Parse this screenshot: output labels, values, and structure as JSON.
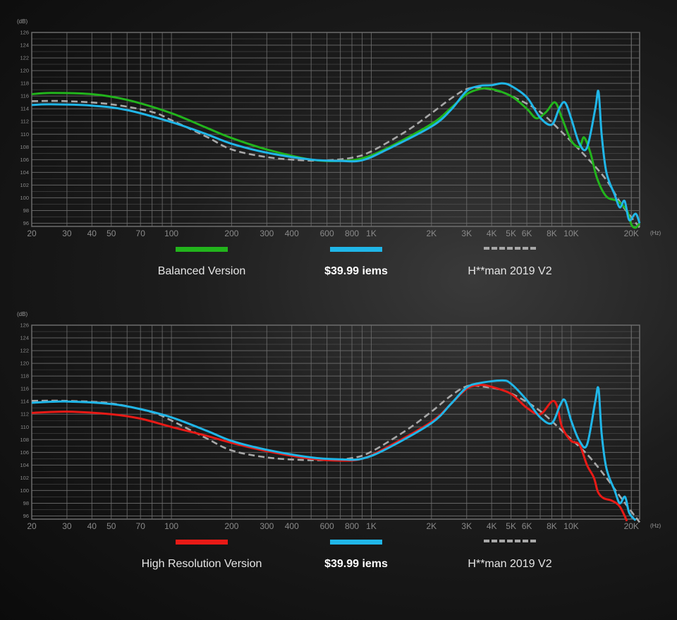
{
  "colors": {
    "grid": "#6c6c6c",
    "green": "#22b41c",
    "blue": "#20b6e8",
    "red": "#e81a16",
    "gray": "#a8a8a8",
    "axis_text": "#8a8a8a",
    "unit_text": "#9a9a9a"
  },
  "chart_data": [
    {
      "type": "line",
      "ylabel": "(dB)",
      "xunit": "(Hz)",
      "xscale": "log",
      "xlim": [
        20,
        22000
      ],
      "ylim": [
        95.5,
        126
      ],
      "yticks": [
        126,
        124,
        122,
        120,
        118,
        116,
        114,
        112,
        110,
        108,
        106,
        104,
        102,
        100,
        98,
        96
      ],
      "xticks": [
        {
          "v": 20,
          "label": "20"
        },
        {
          "v": 30,
          "label": "30"
        },
        {
          "v": 40,
          "label": "40"
        },
        {
          "v": 50,
          "label": "50"
        },
        {
          "v": 70,
          "label": "70"
        },
        {
          "v": 100,
          "label": "100"
        },
        {
          "v": 200,
          "label": "200"
        },
        {
          "v": 300,
          "label": "300"
        },
        {
          "v": 400,
          "label": "400"
        },
        {
          "v": 600,
          "label": "600"
        },
        {
          "v": 800,
          "label": "800"
        },
        {
          "v": 1000,
          "label": "1K"
        },
        {
          "v": 2000,
          "label": "2K"
        },
        {
          "v": 3000,
          "label": "3K"
        },
        {
          "v": 4000,
          "label": "4K"
        },
        {
          "v": 5000,
          "label": "5K"
        },
        {
          "v": 6000,
          "label": "6K"
        },
        {
          "v": 8000,
          "label": "8K"
        },
        {
          "v": 10000,
          "label": "10K"
        },
        {
          "v": 20000,
          "label": "20K"
        }
      ],
      "series": [
        {
          "name": "H**man 2019 V2",
          "color": "#a8a8a8",
          "dashed": true,
          "points": [
            [
              20,
              115.2
            ],
            [
              30,
              115.2
            ],
            [
              50,
              114.7
            ],
            [
              80,
              113.5
            ],
            [
              100,
              112.2
            ],
            [
              150,
              109.6
            ],
            [
              200,
              107.6
            ],
            [
              300,
              106.4
            ],
            [
              450,
              105.9
            ],
            [
              600,
              105.9
            ],
            [
              800,
              106.3
            ],
            [
              1000,
              107.3
            ],
            [
              1500,
              110.5
            ],
            [
              2000,
              113.3
            ],
            [
              2500,
              115.6
            ],
            [
              3000,
              117.1
            ],
            [
              3500,
              117.3
            ],
            [
              4500,
              116.6
            ],
            [
              5500,
              115.4
            ],
            [
              7000,
              113.5
            ],
            [
              9000,
              110.3
            ],
            [
              12000,
              106.3
            ],
            [
              15000,
              102.8
            ],
            [
              18000,
              98.8
            ],
            [
              22000,
              95.3
            ]
          ]
        },
        {
          "name": "Balanced Version",
          "color": "#22b41c",
          "dashed": false,
          "points": [
            [
              20,
              116.3
            ],
            [
              25,
              116.5
            ],
            [
              40,
              116.3
            ],
            [
              60,
              115.4
            ],
            [
              100,
              113.3
            ],
            [
              150,
              111.0
            ],
            [
              200,
              109.4
            ],
            [
              300,
              107.6
            ],
            [
              500,
              106.0
            ],
            [
              700,
              105.8
            ],
            [
              900,
              106.2
            ],
            [
              1200,
              107.8
            ],
            [
              2000,
              111.6
            ],
            [
              2500,
              114.1
            ],
            [
              3000,
              116.3
            ],
            [
              3500,
              117.1
            ],
            [
              4000,
              117.1
            ],
            [
              5000,
              116.0
            ],
            [
              6000,
              114.0
            ],
            [
              6700,
              112.5
            ],
            [
              7500,
              113.5
            ],
            [
              8300,
              115.0
            ],
            [
              9000,
              112.5
            ],
            [
              10000,
              109.0
            ],
            [
              11000,
              108.0
            ],
            [
              11600,
              109.5
            ],
            [
              12500,
              107.0
            ],
            [
              13500,
              103.0
            ],
            [
              15000,
              100.2
            ],
            [
              17000,
              99.5
            ],
            [
              19000,
              98.0
            ],
            [
              20000,
              95.8
            ],
            [
              21000,
              95.3
            ],
            [
              22000,
              96.0
            ]
          ]
        },
        {
          "name": "$39.99 iems",
          "color": "#20b6e8",
          "dashed": false,
          "points": [
            [
              20,
              114.6
            ],
            [
              25,
              114.7
            ],
            [
              40,
              114.5
            ],
            [
              60,
              113.8
            ],
            [
              100,
              111.9
            ],
            [
              150,
              110.0
            ],
            [
              200,
              108.5
            ],
            [
              300,
              107.1
            ],
            [
              500,
              106.0
            ],
            [
              700,
              105.8
            ],
            [
              900,
              105.9
            ],
            [
              1200,
              107.6
            ],
            [
              2000,
              111.2
            ],
            [
              2500,
              113.8
            ],
            [
              3000,
              116.8
            ],
            [
              3500,
              117.6
            ],
            [
              4000,
              117.7
            ],
            [
              4500,
              118.0
            ],
            [
              5000,
              117.6
            ],
            [
              6000,
              115.8
            ],
            [
              7000,
              112.6
            ],
            [
              8000,
              111.5
            ],
            [
              8700,
              114.0
            ],
            [
              9300,
              115.0
            ],
            [
              10000,
              112.5
            ],
            [
              11000,
              108.5
            ],
            [
              12000,
              107.9
            ],
            [
              13200,
              114.0
            ],
            [
              13700,
              116.7
            ],
            [
              14200,
              110.0
            ],
            [
              15000,
              104.0
            ],
            [
              16500,
              100.5
            ],
            [
              17500,
              98.5
            ],
            [
              18500,
              99.5
            ],
            [
              19500,
              96.5
            ],
            [
              21000,
              97.5
            ],
            [
              22000,
              96.0
            ]
          ]
        }
      ],
      "legend": [
        {
          "label": "Balanced Version",
          "color": "#22b41c",
          "dashed": false,
          "bold": false
        },
        {
          "label": "$39.99 iems",
          "color": "#20b6e8",
          "dashed": false,
          "bold": true
        },
        {
          "label": "H**man 2019 V2",
          "color": "#a8a8a8",
          "dashed": true,
          "bold": false
        }
      ]
    },
    {
      "type": "line",
      "ylabel": "(dB)",
      "xunit": "(Hz)",
      "xscale": "log",
      "xlim": [
        20,
        22000
      ],
      "ylim": [
        95.5,
        126
      ],
      "yticks": [
        126,
        124,
        122,
        120,
        118,
        116,
        114,
        112,
        110,
        108,
        106,
        104,
        102,
        100,
        98,
        96
      ],
      "xticks": [
        {
          "v": 20,
          "label": "20"
        },
        {
          "v": 30,
          "label": "30"
        },
        {
          "v": 40,
          "label": "40"
        },
        {
          "v": 50,
          "label": "50"
        },
        {
          "v": 70,
          "label": "70"
        },
        {
          "v": 100,
          "label": "100"
        },
        {
          "v": 200,
          "label": "200"
        },
        {
          "v": 300,
          "label": "300"
        },
        {
          "v": 400,
          "label": "400"
        },
        {
          "v": 600,
          "label": "600"
        },
        {
          "v": 800,
          "label": "800"
        },
        {
          "v": 1000,
          "label": "1K"
        },
        {
          "v": 2000,
          "label": "2K"
        },
        {
          "v": 3000,
          "label": "3K"
        },
        {
          "v": 4000,
          "label": "4K"
        },
        {
          "v": 5000,
          "label": "5K"
        },
        {
          "v": 6000,
          "label": "6K"
        },
        {
          "v": 8000,
          "label": "8K"
        },
        {
          "v": 10000,
          "label": "10K"
        },
        {
          "v": 20000,
          "label": "20K"
        }
      ],
      "series": [
        {
          "name": "H**man 2019 V2",
          "color": "#a8a8a8",
          "dashed": true,
          "points": [
            [
              20,
              114.1
            ],
            [
              30,
              114.1
            ],
            [
              50,
              113.7
            ],
            [
              80,
              112.3
            ],
            [
              100,
              111.0
            ],
            [
              150,
              108.2
            ],
            [
              200,
              106.3
            ],
            [
              300,
              105.2
            ],
            [
              450,
              104.8
            ],
            [
              600,
              104.8
            ],
            [
              800,
              105.1
            ],
            [
              1000,
              106.1
            ],
            [
              1500,
              109.5
            ],
            [
              2000,
              112.4
            ],
            [
              2500,
              114.9
            ],
            [
              3000,
              116.4
            ],
            [
              3500,
              116.4
            ],
            [
              4500,
              115.8
            ],
            [
              5500,
              114.6
            ],
            [
              7000,
              112.5
            ],
            [
              9000,
              109.4
            ],
            [
              12000,
              105.7
            ],
            [
              15000,
              102.0
            ],
            [
              18000,
              98.6
            ],
            [
              22000,
              95.0
            ]
          ]
        },
        {
          "name": "High Resolution Version",
          "color": "#e81a16",
          "dashed": false,
          "points": [
            [
              20,
              112.2
            ],
            [
              30,
              112.4
            ],
            [
              50,
              112.0
            ],
            [
              70,
              111.3
            ],
            [
              100,
              110.0
            ],
            [
              150,
              108.6
            ],
            [
              200,
              107.5
            ],
            [
              300,
              106.2
            ],
            [
              500,
              105.0
            ],
            [
              700,
              104.7
            ],
            [
              900,
              105.0
            ],
            [
              1200,
              106.8
            ],
            [
              2000,
              110.8
            ],
            [
              2500,
              113.6
            ],
            [
              3000,
              116.0
            ],
            [
              3500,
              116.6
            ],
            [
              4000,
              116.3
            ],
            [
              5000,
              115.2
            ],
            [
              6000,
              113.0
            ],
            [
              7000,
              112.0
            ],
            [
              8000,
              114.0
            ],
            [
              8500,
              113.3
            ],
            [
              9000,
              110.0
            ],
            [
              10000,
              107.8
            ],
            [
              11000,
              107.2
            ],
            [
              12000,
              104.0
            ],
            [
              13000,
              102.0
            ],
            [
              13600,
              99.8
            ],
            [
              14500,
              98.8
            ],
            [
              16000,
              98.4
            ],
            [
              17500,
              97.5
            ],
            [
              19000,
              95.2
            ]
          ]
        },
        {
          "name": "$39.99 iems",
          "color": "#20b6e8",
          "dashed": false,
          "points": [
            [
              20,
              113.8
            ],
            [
              30,
              114.0
            ],
            [
              50,
              113.6
            ],
            [
              70,
              112.8
            ],
            [
              100,
              111.5
            ],
            [
              150,
              109.4
            ],
            [
              200,
              107.8
            ],
            [
              300,
              106.4
            ],
            [
              500,
              105.2
            ],
            [
              700,
              104.9
            ],
            [
              900,
              105.0
            ],
            [
              1200,
              106.6
            ],
            [
              2000,
              110.6
            ],
            [
              2500,
              113.6
            ],
            [
              3000,
              116.2
            ],
            [
              3500,
              116.9
            ],
            [
              4500,
              117.3
            ],
            [
              5000,
              116.8
            ],
            [
              6000,
              114.2
            ],
            [
              7000,
              111.5
            ],
            [
              8000,
              110.6
            ],
            [
              8800,
              113.4
            ],
            [
              9300,
              114.2
            ],
            [
              10000,
              111.0
            ],
            [
              11000,
              107.8
            ],
            [
              12000,
              107.2
            ],
            [
              13200,
              114.0
            ],
            [
              13700,
              116.0
            ],
            [
              14200,
              109.0
            ],
            [
              15000,
              103.5
            ],
            [
              16500,
              100.0
            ],
            [
              17500,
              98.0
            ],
            [
              18600,
              99.0
            ],
            [
              19500,
              96.5
            ],
            [
              21000,
              95.3
            ]
          ]
        }
      ],
      "legend": [
        {
          "label": "High Resolution Version",
          "color": "#e81a16",
          "dashed": false,
          "bold": false
        },
        {
          "label": "$39.99 iems",
          "color": "#20b6e8",
          "dashed": false,
          "bold": true
        },
        {
          "label": "H**man 2019 V2",
          "color": "#a8a8a8",
          "dashed": true,
          "bold": false
        }
      ]
    }
  ]
}
